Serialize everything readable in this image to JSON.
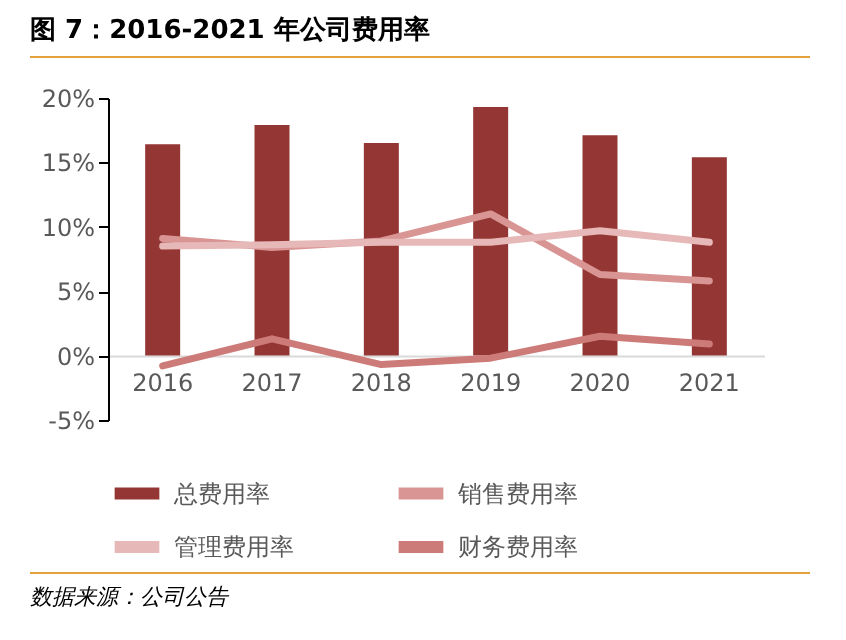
{
  "chart_data": {
    "type": "bar",
    "title": "图 7：2016-2021 年公司费用率",
    "categories": [
      "2016",
      "2017",
      "2018",
      "2019",
      "2020",
      "2021"
    ],
    "series": [
      {
        "name": "总费用率",
        "color": "#943634",
        "values": [
          16.4,
          17.9,
          16.5,
          19.3,
          17.1,
          15.4
        ]
      },
      {
        "name": "销售费用率",
        "type": "line",
        "color": "#d99594",
        "values": [
          9.1,
          8.4,
          8.9,
          11.0,
          6.3,
          5.8
        ]
      },
      {
        "name": "管理费用率",
        "type": "line",
        "color": "#e6b9b8",
        "values": [
          8.5,
          8.6,
          8.8,
          8.8,
          9.7,
          8.8
        ]
      },
      {
        "name": "财务费用率",
        "type": "line",
        "color": "#cd7b79",
        "values": [
          -0.8,
          1.3,
          -0.7,
          -0.2,
          1.5,
          0.9
        ]
      }
    ],
    "ylim": [
      -5,
      20
    ],
    "yticks": [
      {
        "value": -5,
        "label": "-5%"
      },
      {
        "value": 0,
        "label": "0%"
      },
      {
        "value": 5,
        "label": "5%"
      },
      {
        "value": 10,
        "label": "10%"
      },
      {
        "value": 15,
        "label": "15%"
      },
      {
        "value": 20,
        "label": "20%"
      }
    ],
    "grid": false,
    "legend": "bottom",
    "marker": "none",
    "line_style": "solid",
    "annotations": [
      "数据来源：公司公告"
    ]
  }
}
